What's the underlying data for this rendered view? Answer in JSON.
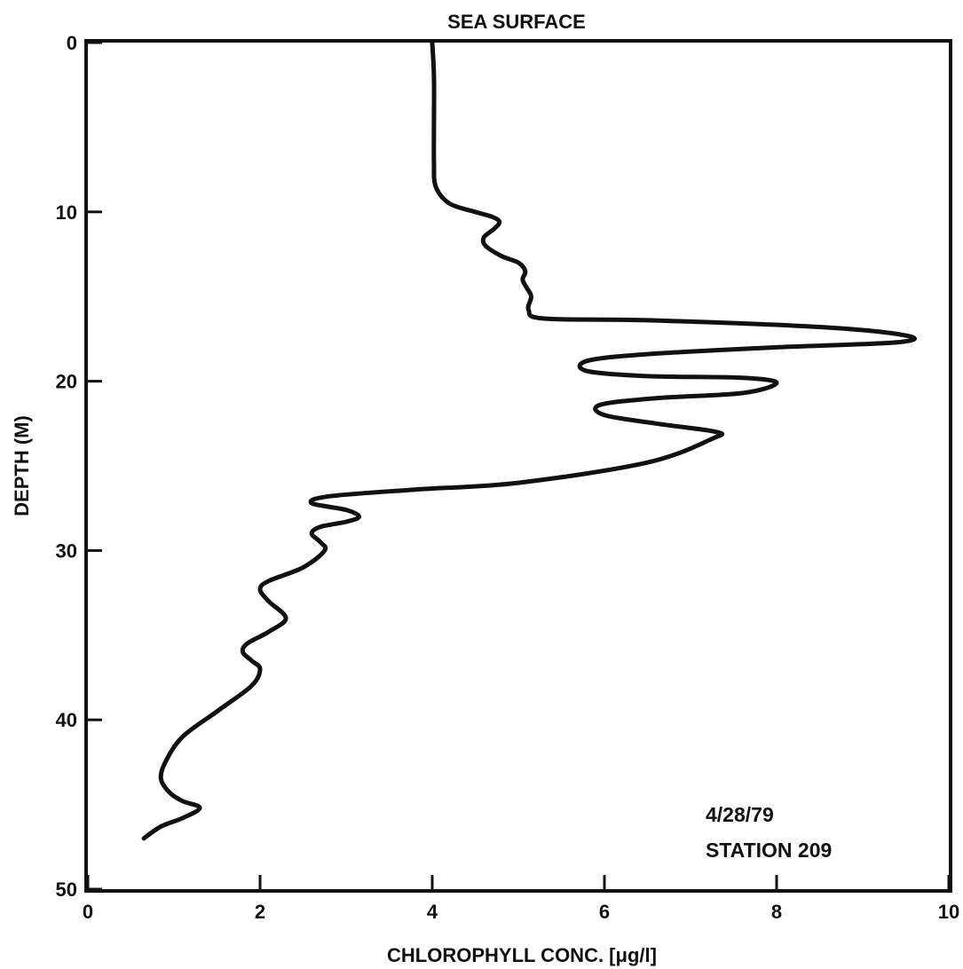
{
  "chart_data": {
    "type": "line",
    "title": "SEA SURFACE",
    "xlabel": "CHLOROPHYLL CONC. [μg/l]",
    "ylabel": "DEPTH (M)",
    "xlim": [
      0,
      10
    ],
    "ylim": [
      50,
      0
    ],
    "y_inverted": true,
    "grid": false,
    "x_ticks": [
      0,
      2,
      4,
      6,
      8,
      10
    ],
    "x_tick_labels": [
      "0",
      "2",
      "4",
      "6",
      "8",
      "10"
    ],
    "y_ticks": [
      0,
      10,
      20,
      30,
      40,
      50
    ],
    "y_tick_labels": [
      "0",
      "10",
      "20",
      "30",
      "40",
      "50"
    ],
    "annotations": [
      "4/28/79",
      "STATION 209"
    ],
    "series": [
      {
        "x": [
          4.0,
          4.02,
          4.02,
          4.02,
          4.04,
          4.2,
          4.5,
          4.7,
          4.78,
          4.72,
          4.6,
          4.62,
          4.8,
          5.0,
          5.08,
          5.05,
          5.1,
          5.15,
          5.12,
          5.3,
          6.5,
          8.5,
          9.5,
          9.4,
          8.0,
          6.5,
          5.8,
          5.8,
          6.5,
          7.6,
          8.0,
          7.6,
          6.6,
          5.95,
          6.0,
          6.6,
          7.3,
          7.25,
          6.5,
          5.0,
          3.8,
          2.8,
          2.6,
          3.0,
          3.15,
          3.0,
          2.7,
          2.6,
          2.7,
          2.75,
          2.5,
          2.1,
          2.0,
          2.1,
          2.3,
          2.1,
          1.85,
          1.8,
          1.9,
          2.0,
          1.9,
          1.5,
          1.1,
          0.9,
          0.85,
          0.95,
          1.1,
          1.3,
          1.1,
          0.85,
          0.65
        ],
        "y": [
          0,
          2,
          5,
          7,
          8.5,
          9.5,
          10.0,
          10.3,
          10.6,
          11.0,
          11.5,
          12.0,
          12.6,
          13.0,
          13.5,
          14.0,
          14.5,
          15.0,
          15.8,
          16.3,
          16.4,
          16.8,
          17.3,
          17.7,
          18.0,
          18.4,
          18.8,
          19.4,
          19.7,
          19.8,
          20.1,
          20.7,
          21.0,
          21.4,
          22.0,
          22.5,
          23.0,
          23.4,
          24.8,
          26.0,
          26.4,
          26.8,
          27.2,
          27.6,
          28.0,
          28.3,
          28.6,
          29.0,
          29.5,
          30.0,
          31.0,
          31.8,
          32.3,
          33.0,
          34.0,
          34.8,
          35.5,
          36.0,
          36.5,
          37.0,
          38.0,
          39.5,
          41.0,
          42.5,
          43.5,
          44.3,
          44.8,
          45.2,
          45.8,
          46.3,
          47.0
        ]
      }
    ]
  }
}
